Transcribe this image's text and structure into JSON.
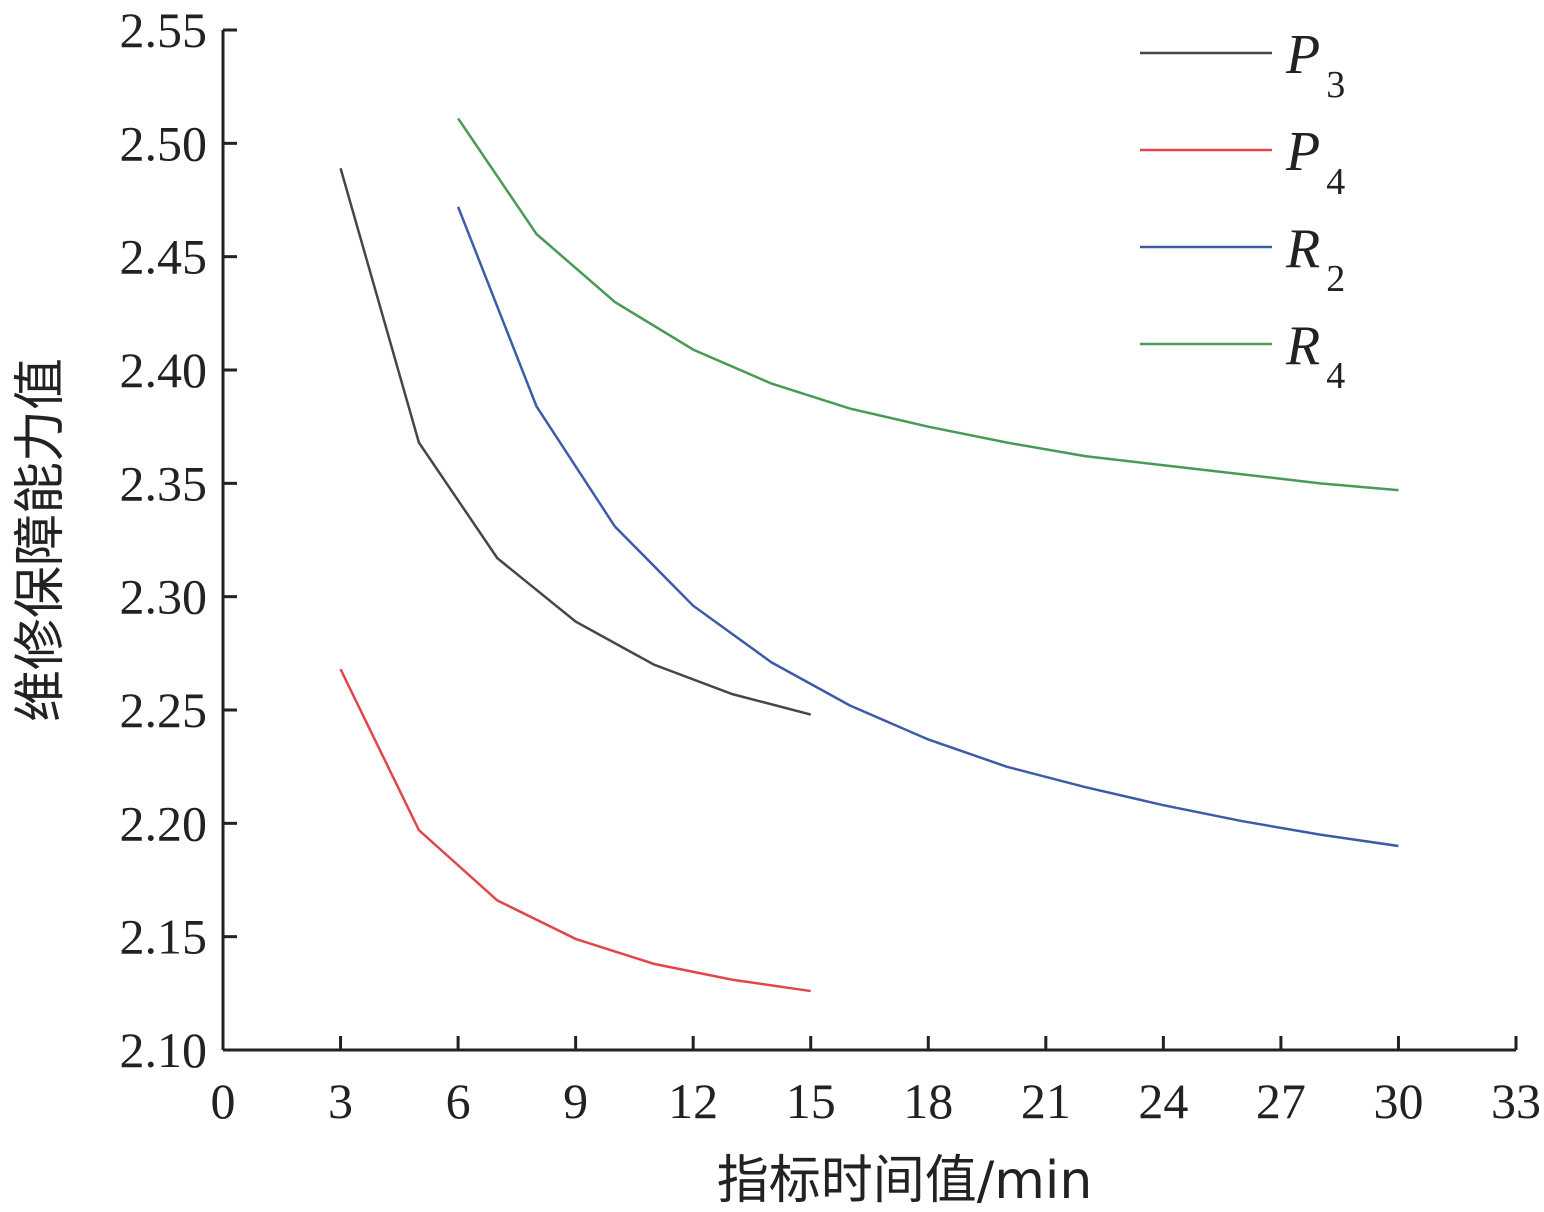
{
  "chart_data": {
    "type": "line",
    "title": "",
    "xlabel": "指标时间值/min",
    "ylabel": "维修保障能力值",
    "xlim": [
      0,
      33
    ],
    "ylim": [
      2.1,
      2.55
    ],
    "x_ticks": [
      "0",
      "3",
      "6",
      "9",
      "12",
      "15",
      "18",
      "21",
      "24",
      "27",
      "30",
      "33"
    ],
    "y_ticks": [
      "2.10",
      "2.15",
      "2.20",
      "2.25",
      "2.30",
      "2.35",
      "2.40",
      "2.45",
      "2.50",
      "2.55"
    ],
    "legend_position": "top-right",
    "series": [
      {
        "name": "P",
        "subscript": "3",
        "color": "#4a4543",
        "marker": "square",
        "x": [
          3,
          5,
          7,
          9,
          11,
          13,
          15
        ],
        "y": [
          2.489,
          2.368,
          2.317,
          2.289,
          2.27,
          2.257,
          2.248
        ]
      },
      {
        "name": "P",
        "subscript": "4",
        "color": "#e0474c",
        "marker": "circle",
        "x": [
          3,
          5,
          7,
          9,
          11,
          13,
          15
        ],
        "y": [
          2.268,
          2.197,
          2.166,
          2.149,
          2.138,
          2.131,
          2.126
        ]
      },
      {
        "name": "R",
        "subscript": "2",
        "color": "#3d5ba8",
        "marker": "triangle-up",
        "x": [
          6,
          8,
          10,
          12,
          14,
          16,
          18,
          20,
          22,
          24,
          26,
          28,
          30
        ],
        "y": [
          2.472,
          2.384,
          2.331,
          2.296,
          2.271,
          2.252,
          2.237,
          2.225,
          2.216,
          2.208,
          2.201,
          2.195,
          2.19
        ]
      },
      {
        "name": "R",
        "subscript": "4",
        "color": "#4a9a57",
        "marker": "triangle-down",
        "x": [
          6,
          8,
          10,
          12,
          14,
          16,
          18,
          20,
          22,
          24,
          26,
          28,
          30
        ],
        "y": [
          2.511,
          2.46,
          2.43,
          2.409,
          2.394,
          2.383,
          2.375,
          2.368,
          2.362,
          2.358,
          2.354,
          2.35,
          2.347
        ]
      }
    ]
  }
}
